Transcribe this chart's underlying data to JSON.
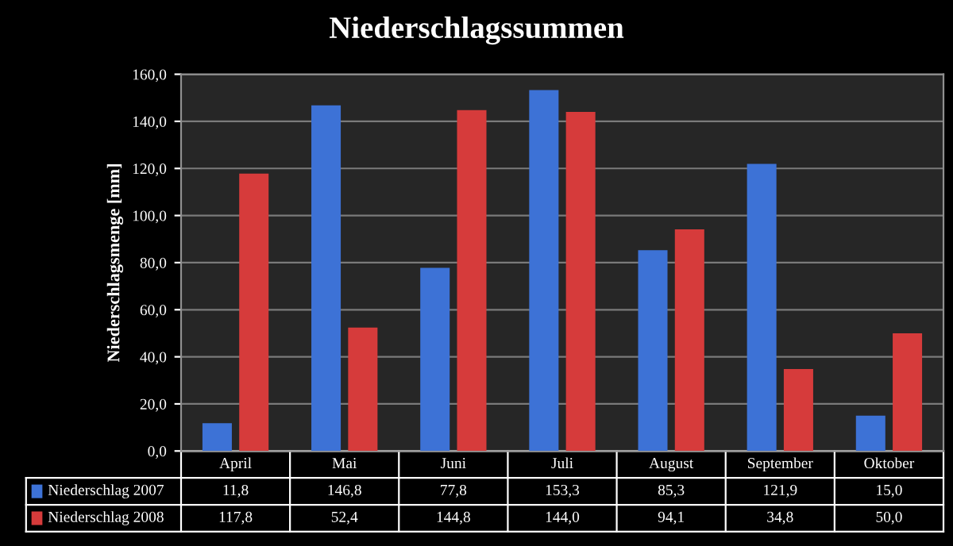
{
  "chart_data": {
    "type": "bar",
    "title": "Niederschlagssummen",
    "ylabel": "Niederschlagsmenge [mm]",
    "categories": [
      "April",
      "Mai",
      "Juni",
      "Juli",
      "August",
      "September",
      "Oktober"
    ],
    "series": [
      {
        "name": "Niederschlag 2007",
        "color": "#3d72d6",
        "values": [
          11.8,
          146.8,
          77.8,
          153.3,
          85.3,
          121.9,
          15.0
        ],
        "value_labels": [
          "11,8",
          "146,8",
          "77,8",
          "153,3",
          "85,3",
          "121,9",
          "15,0"
        ]
      },
      {
        "name": "Niederschlag 2008",
        "color": "#d63b3b",
        "values": [
          117.8,
          52.4,
          144.8,
          144.0,
          94.1,
          34.8,
          50.0
        ],
        "value_labels": [
          "117,8",
          "52,4",
          "144,8",
          "144,0",
          "94,1",
          "34,8",
          "50,0"
        ]
      }
    ],
    "ylim": [
      0,
      160
    ],
    "yticks": [
      {
        "value": 0,
        "label": "0,0"
      },
      {
        "value": 20,
        "label": "20,0"
      },
      {
        "value": 40,
        "label": "40,0"
      },
      {
        "value": 60,
        "label": "60,0"
      },
      {
        "value": 80,
        "label": "80,0"
      },
      {
        "value": 100,
        "label": "100,0"
      },
      {
        "value": 120,
        "label": "120,0"
      },
      {
        "value": 140,
        "label": "140,0"
      },
      {
        "value": 160,
        "label": "160,0"
      }
    ],
    "grid": "y",
    "legend": "bottom"
  }
}
